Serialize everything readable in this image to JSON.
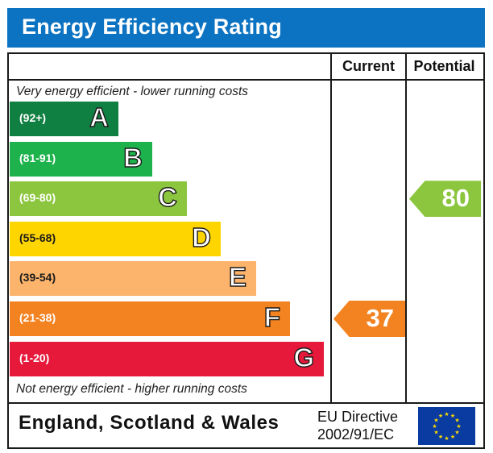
{
  "title": "Energy Efficiency Rating",
  "columns": {
    "current": "Current",
    "potential": "Potential"
  },
  "top_note": "Very energy efficient - lower running costs",
  "bottom_note": "Not energy efficient - higher running costs",
  "footer": {
    "region": "England, Scotland & Wales",
    "directive_line1": "EU Directive",
    "directive_line2": "2002/91/EC"
  },
  "colors": {
    "title_bar": "#0b73c1",
    "eu_flag": "#0a3ba0",
    "eu_stars": "#ffdd00"
  },
  "chart_data": {
    "type": "bar",
    "bands": [
      {
        "letter": "A",
        "range": "(92+)",
        "color": "#108042"
      },
      {
        "letter": "B",
        "range": "(81-91)",
        "color": "#1db24b"
      },
      {
        "letter": "C",
        "range": "(69-80)",
        "color": "#8cc63e"
      },
      {
        "letter": "D",
        "range": "(55-68)",
        "color": "#ffd500"
      },
      {
        "letter": "E",
        "range": "(39-54)",
        "color": "#fcb36b"
      },
      {
        "letter": "F",
        "range": "(21-38)",
        "color": "#f38220"
      },
      {
        "letter": "G",
        "range": "(1-20)",
        "color": "#e6193b"
      }
    ],
    "current": {
      "value": 37,
      "band": "F",
      "color": "#f38220"
    },
    "potential": {
      "value": 80,
      "band": "C",
      "color": "#8cc63e"
    }
  }
}
